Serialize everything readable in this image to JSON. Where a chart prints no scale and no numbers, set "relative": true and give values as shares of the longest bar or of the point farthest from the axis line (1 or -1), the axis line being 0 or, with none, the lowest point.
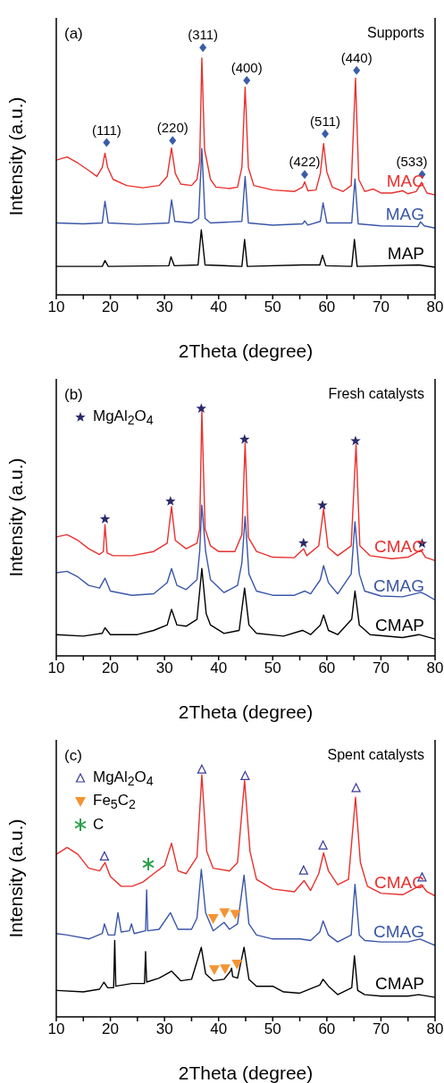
{
  "chart_data": [
    {
      "type": "line",
      "title": "Supports",
      "xlabel": "2Theta (degree)",
      "ylabel": "Intensity (a.u.)",
      "xlim": [
        10,
        80
      ],
      "xticks": [
        10,
        {
          "value": 15,
          "label": null
        },
        20,
        {
          "value": 25,
          "label": null
        },
        30,
        {
          "value": 35,
          "label": null
        },
        40,
        {
          "value": 45,
          "label": null
        },
        50,
        {
          "value": 55,
          "label": null
        },
        60,
        {
          "value": 65,
          "label": null
        },
        70,
        {
          "value": 75,
          "label": null
        },
        80
      ],
      "relative": true,
      "legend": false,
      "annotations": [
        "(a)",
        {
          "text": "(111)",
          "x": 19.3,
          "y": 0.616
        },
        {
          "text": "(220)",
          "x": 31.5,
          "y": 0.624
        },
        {
          "text": "(311)",
          "x": 37.1,
          "y": 1.0
        },
        {
          "text": "(400)",
          "x": 45.2,
          "y": 0.867
        },
        {
          "text": "(422)",
          "x": 55.9,
          "y": 0.487
        },
        {
          "text": "(511)",
          "x": 59.7,
          "y": 0.651
        },
        {
          "text": "(440)",
          "x": 65.5,
          "y": 0.908
        },
        {
          "text": "(533)",
          "x": 77.6,
          "y": 0.487
        }
      ],
      "series": [
        {
          "name": "MAC",
          "color": "#e8312f",
          "x": [
            10,
            12,
            14,
            16,
            17.5,
            18.5,
            19,
            19.5,
            20.5,
            23,
            26,
            29,
            30.5,
            31.3,
            32,
            33,
            35,
            36,
            36.5,
            36.9,
            37.4,
            38.5,
            39.5,
            42,
            43.5,
            44.3,
            44.9,
            45.5,
            46.5,
            50,
            54,
            55.5,
            55.9,
            56.5,
            58,
            58.8,
            59.4,
            60,
            61,
            63,
            64.5,
            65.3,
            65.9,
            67,
            68.6,
            70,
            72,
            74,
            75,
            76.5,
            77.5,
            78.5,
            80
          ],
          "values": [
            0.545,
            0.558,
            0.533,
            0.503,
            0.479,
            0.515,
            0.573,
            0.515,
            0.467,
            0.442,
            0.433,
            0.442,
            0.479,
            0.594,
            0.491,
            0.448,
            0.442,
            0.467,
            0.539,
            0.958,
            0.588,
            0.467,
            0.436,
            0.43,
            0.436,
            0.515,
            0.84,
            0.515,
            0.442,
            0.424,
            0.418,
            0.436,
            0.457,
            0.421,
            0.424,
            0.491,
            0.612,
            0.497,
            0.436,
            0.418,
            0.442,
            0.876,
            0.467,
            0.418,
            0.428,
            0.412,
            0.412,
            0.421,
            0.409,
            0.418,
            0.455,
            0.412,
            0.404
          ]
        },
        {
          "name": "MAG",
          "color": "#3a56a8",
          "x": [
            10,
            15,
            18.5,
            19,
            19.6,
            25,
            30.8,
            31.3,
            31.9,
            35,
            36.3,
            36.9,
            37.5,
            38.5,
            44.3,
            44.9,
            45.5,
            50,
            55.5,
            55.9,
            56.5,
            58.8,
            59.3,
            60,
            64.6,
            65.2,
            65.8,
            70,
            76.8,
            77.3,
            78,
            80
          ],
          "values": [
            0.291,
            0.287,
            0.291,
            0.379,
            0.291,
            0.285,
            0.291,
            0.384,
            0.297,
            0.291,
            0.309,
            0.592,
            0.309,
            0.291,
            0.297,
            0.479,
            0.291,
            0.282,
            0.287,
            0.299,
            0.282,
            0.297,
            0.372,
            0.291,
            0.291,
            0.469,
            0.287,
            0.279,
            0.276,
            0.295,
            0.279,
            0.27
          ]
        },
        {
          "name": "MAP",
          "color": "#000000",
          "x": [
            10,
            18.5,
            19,
            19.6,
            30.8,
            31.2,
            31.8,
            36.2,
            36.8,
            37.5,
            44.3,
            44.8,
            45.3,
            55.5,
            58.7,
            59.2,
            59.8,
            64.6,
            65.1,
            65.6,
            77,
            80
          ],
          "values": [
            0.115,
            0.115,
            0.139,
            0.115,
            0.118,
            0.154,
            0.118,
            0.121,
            0.263,
            0.121,
            0.115,
            0.224,
            0.115,
            0.121,
            0.121,
            0.16,
            0.118,
            0.115,
            0.224,
            0.115,
            0.121,
            0.112
          ]
        },
        {
          "type": "scatter",
          "color": "#3a5cab",
          "marker": "diamond",
          "x": [
            19.3,
            31.5,
            37.1,
            45.2,
            55.9,
            59.7,
            65.5,
            77.6
          ],
          "values": [
            0.616,
            0.624,
            1.0,
            0.867,
            0.487,
            0.651,
            0.908,
            0.487
          ]
        }
      ]
    },
    {
      "type": "line",
      "title": "Fresh catalysts",
      "xlabel": "2Theta (degree)",
      "ylabel": "Intensity (a.u.)",
      "xlim": [
        10,
        80
      ],
      "xticks": [
        10,
        {
          "value": 15,
          "label": null
        },
        20,
        {
          "value": 25,
          "label": null
        },
        30,
        {
          "value": 35,
          "label": null
        },
        40,
        {
          "value": 45,
          "label": null
        },
        50,
        {
          "value": 55,
          "label": null
        },
        60,
        {
          "value": 65,
          "label": null
        },
        70,
        {
          "value": 75,
          "label": null
        },
        80
      ],
      "relative": true,
      "legend": "top left",
      "annotations": [
        "(b)"
      ],
      "series": [
        {
          "name": "CMAC",
          "color": "#e8312f",
          "x": [
            10,
            12,
            14,
            16,
            18,
            18.7,
            19,
            19.4,
            20.5,
            24,
            28,
            30.5,
            31.3,
            32,
            34,
            36,
            36.5,
            36.9,
            37.5,
            38.5,
            40,
            43,
            44.3,
            44.9,
            45.5,
            47,
            50,
            54,
            55.7,
            56.3,
            58.5,
            59.4,
            60.2,
            62,
            64.5,
            65.4,
            66.1,
            68,
            72,
            75,
            77.4,
            78.2,
            80
          ],
          "values": [
            0.481,
            0.49,
            0.467,
            0.433,
            0.41,
            0.422,
            0.53,
            0.416,
            0.405,
            0.405,
            0.422,
            0.456,
            0.604,
            0.467,
            0.433,
            0.456,
            0.513,
            0.992,
            0.513,
            0.445,
            0.422,
            0.422,
            0.49,
            0.861,
            0.479,
            0.422,
            0.399,
            0.397,
            0.433,
            0.405,
            0.445,
            0.595,
            0.439,
            0.405,
            0.445,
            0.855,
            0.445,
            0.405,
            0.393,
            0.399,
            0.428,
            0.399,
            0.385
          ]
        },
        {
          "name": "CMAG",
          "color": "#3a56a8",
          "x": [
            10,
            12,
            14,
            16,
            18,
            19,
            20,
            24,
            28,
            30.5,
            31.3,
            32.3,
            34,
            36,
            36.5,
            36.9,
            37.6,
            38.5,
            41,
            43.5,
            44.3,
            44.9,
            45.6,
            47,
            50,
            54,
            55.9,
            57,
            58.8,
            59.4,
            60.3,
            62,
            64.5,
            65.2,
            66,
            67,
            70,
            74,
            77.4,
            78.5,
            80
          ],
          "values": [
            0.336,
            0.342,
            0.319,
            0.285,
            0.274,
            0.314,
            0.262,
            0.245,
            0.251,
            0.296,
            0.353,
            0.285,
            0.268,
            0.308,
            0.422,
            0.61,
            0.422,
            0.308,
            0.256,
            0.285,
            0.376,
            0.564,
            0.331,
            0.262,
            0.245,
            0.245,
            0.262,
            0.251,
            0.308,
            0.365,
            0.296,
            0.251,
            0.331,
            0.542,
            0.331,
            0.262,
            0.242,
            0.239,
            0.257,
            0.245,
            0.226
          ]
        },
        {
          "name": "CMAP",
          "color": "#000000",
          "x": [
            10,
            15,
            18.5,
            19,
            20,
            25,
            28,
            30.5,
            31.3,
            32.3,
            34,
            36,
            36.9,
            37.7,
            38.5,
            41,
            43.8,
            44.8,
            45.6,
            47,
            52,
            55.5,
            57,
            58.8,
            59.4,
            60.3,
            62,
            64.6,
            65.2,
            66,
            68,
            74,
            77,
            80
          ],
          "values": [
            0.086,
            0.08,
            0.091,
            0.114,
            0.086,
            0.086,
            0.103,
            0.125,
            0.188,
            0.125,
            0.12,
            0.148,
            0.353,
            0.171,
            0.125,
            0.091,
            0.103,
            0.274,
            0.125,
            0.091,
            0.08,
            0.103,
            0.086,
            0.125,
            0.165,
            0.103,
            0.086,
            0.148,
            0.262,
            0.125,
            0.086,
            0.074,
            0.086,
            0.068
          ]
        },
        {
          "name": "MgAl$_{2}$O$_{4}$",
          "type": "scatter",
          "color": "#2b2a6b",
          "marker": "star",
          "x": [
            19.0,
            31.1,
            36.8,
            44.8,
            55.7,
            59.2,
            65.3,
            77.6
          ],
          "values": [
            0.553,
            0.625,
            1.0,
            0.875,
            0.456,
            0.609,
            0.869,
            0.454
          ]
        }
      ]
    },
    {
      "type": "line",
      "title": "Spent catalysts",
      "xlabel": "2Theta (degree)",
      "ylabel": "Intensity (a.u.)",
      "xlim": [
        10,
        80
      ],
      "xticks": [
        10,
        {
          "value": 15,
          "label": null
        },
        20,
        {
          "value": 25,
          "label": null
        },
        30,
        {
          "value": 35,
          "label": null
        },
        40,
        {
          "value": 45,
          "label": null
        },
        50,
        {
          "value": 55,
          "label": null
        },
        60,
        {
          "value": 65,
          "label": null
        },
        70,
        {
          "value": 75,
          "label": null
        },
        80
      ],
      "relative": true,
      "legend": "top left",
      "annotations": [
        "(c)"
      ],
      "series": [
        {
          "name": "CMAC",
          "color": "#e8312f",
          "x": [
            10,
            12,
            14,
            16,
            18,
            19,
            20,
            22,
            24,
            26,
            28,
            30,
            31.3,
            32.5,
            34,
            36,
            36.9,
            37.8,
            39,
            42,
            43.5,
            44.8,
            45.8,
            47,
            50,
            54,
            55.8,
            57,
            58.5,
            59.4,
            60.3,
            62,
            64,
            65.3,
            66.2,
            67.5,
            70,
            74,
            77.5,
            78.5,
            80
          ],
          "values": [
            0.657,
            0.685,
            0.657,
            0.601,
            0.59,
            0.624,
            0.567,
            0.528,
            0.528,
            0.545,
            0.579,
            0.612,
            0.702,
            0.59,
            0.579,
            0.646,
            0.978,
            0.669,
            0.601,
            0.59,
            0.624,
            0.955,
            0.669,
            0.556,
            0.517,
            0.506,
            0.551,
            0.511,
            0.579,
            0.663,
            0.59,
            0.534,
            0.556,
            0.888,
            0.624,
            0.528,
            0.5,
            0.494,
            0.534,
            0.506,
            0.489
          ]
        },
        {
          "name": "CMAG",
          "color": "#3a56a8",
          "x": [
            10,
            12,
            16,
            18.5,
            18.9,
            19.6,
            20.8,
            21.4,
            22,
            23.5,
            23.9,
            24.4,
            26.5,
            26.7,
            26.9,
            29,
            31.1,
            32.5,
            35,
            36,
            36.8,
            37.6,
            39,
            41,
            42,
            43.5,
            44.7,
            45.6,
            47,
            50,
            55,
            57,
            58.7,
            59.3,
            60.3,
            62,
            64.5,
            65.2,
            66,
            67,
            70,
            75,
            77.2,
            80
          ],
          "values": [
            0.337,
            0.331,
            0.315,
            0.337,
            0.376,
            0.331,
            0.331,
            0.421,
            0.343,
            0.348,
            0.376,
            0.337,
            0.348,
            0.513,
            0.348,
            0.354,
            0.421,
            0.354,
            0.354,
            0.399,
            0.596,
            0.421,
            0.348,
            0.382,
            0.354,
            0.376,
            0.573,
            0.376,
            0.331,
            0.315,
            0.315,
            0.309,
            0.343,
            0.388,
            0.331,
            0.303,
            0.331,
            0.536,
            0.331,
            0.309,
            0.303,
            0.303,
            0.315,
            0.289
          ]
        },
        {
          "name": "CMAP",
          "color": "#000000",
          "x": [
            10,
            15,
            18,
            18.8,
            19.5,
            20.6,
            20.8,
            21.0,
            24,
            26.3,
            26.5,
            26.7,
            29,
            31.3,
            33,
            35,
            36.8,
            37.6,
            39,
            41,
            42.2,
            42.4,
            42.6,
            43.5,
            44.7,
            45.6,
            47,
            50,
            52,
            55,
            58.7,
            59.3,
            60.3,
            62,
            64.6,
            65.1,
            65.7,
            67,
            70,
            75,
            77,
            80
          ],
          "values": [
            0.107,
            0.101,
            0.112,
            0.14,
            0.118,
            0.118,
            0.309,
            0.124,
            0.135,
            0.135,
            0.264,
            0.141,
            0.157,
            0.185,
            0.146,
            0.152,
            0.281,
            0.174,
            0.146,
            0.152,
            0.185,
            0.197,
            0.163,
            0.157,
            0.281,
            0.152,
            0.124,
            0.124,
            0.101,
            0.096,
            0.129,
            0.152,
            0.124,
            0.09,
            0.118,
            0.247,
            0.107,
            0.09,
            0.084,
            0.084,
            0.09,
            0.079
          ]
        },
        {
          "name": "MgAl$_{2}$O$_{4}$",
          "type": "scatter",
          "color": "#3b3b9a",
          "marker": "triangle",
          "x": [
            18.9,
            36.9,
            44.9,
            55.7,
            59.3,
            65.4,
            77.6
          ],
          "values": [
            0.649,
            1.0,
            0.974,
            0.592,
            0.693,
            0.925,
            0.564
          ]
        },
        {
          "name": "Fe$_{5}$C$_{2}$",
          "type": "scatter",
          "color": "#f39433",
          "marker": "triangle-down",
          "x": [
            39.0,
            41.1,
            43.1,
            39.2,
            41.2,
            43.4
          ],
          "values": [
            0.397,
            0.421,
            0.415,
            0.191,
            0.194,
            0.213
          ]
        },
        {
          "name": "C",
          "type": "scatter",
          "color": "#2ca04c",
          "marker": "cross",
          "x": [
            27.0
          ],
          "values": [
            0.618
          ]
        }
      ]
    }
  ]
}
